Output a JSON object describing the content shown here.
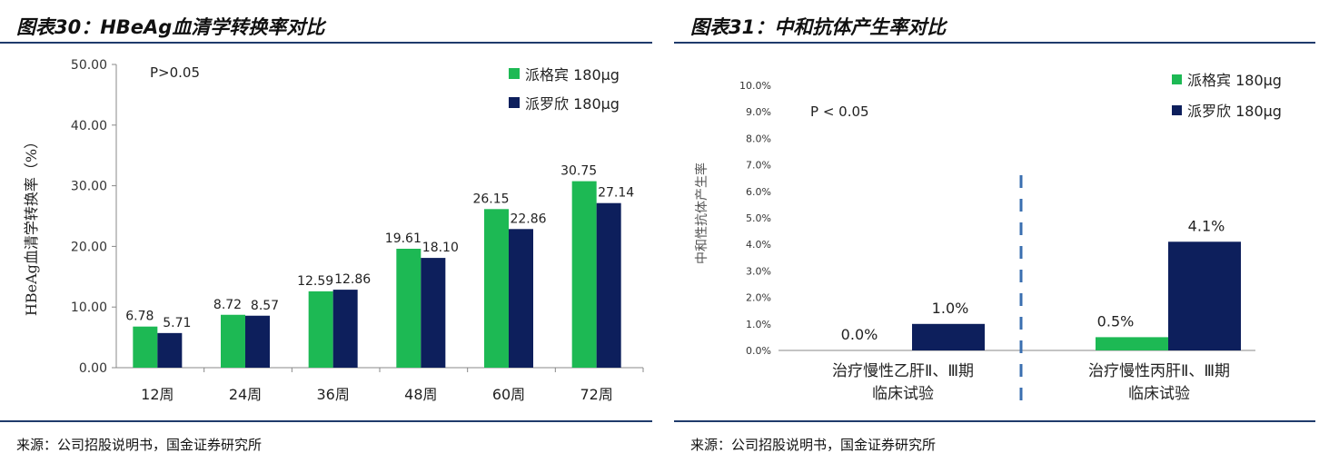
{
  "left": {
    "title": "图表30：HBeAg血清学转换率对比",
    "source": "来源：公司招股说明书，国金证券研究所"
  },
  "right": {
    "title": "图表31：中和抗体产生率对比",
    "source": "来源：公司招股说明书，国金证券研究所"
  },
  "colors": {
    "green": "#1db954",
    "navy": "#0d1f5c",
    "axis": "#888888",
    "rule": "#1f3b6b",
    "divider": "#3a6fb0"
  },
  "chart_data": [
    {
      "type": "bar",
      "title": "图表30：HBeAg血清学转换率对比",
      "annotation": "P>0.05",
      "ylabel": "HBeAg血清学转换率（%）",
      "xlabel": "",
      "ylim": [
        0,
        50
      ],
      "yticks": [
        "0.00",
        "10.00",
        "20.00",
        "30.00",
        "40.00",
        "50.00"
      ],
      "yticks_values": [
        0,
        10,
        20,
        30,
        40,
        50
      ],
      "categories": [
        "12周",
        "24周",
        "36周",
        "48周",
        "60周",
        "72周"
      ],
      "legend_position": "top-right",
      "series": [
        {
          "name": "派格宾 180μg",
          "color": "#1db954",
          "values": [
            6.78,
            8.72,
            12.59,
            19.61,
            26.15,
            30.75
          ],
          "labels": [
            "6.78",
            "8.72",
            "12.59",
            "19.61",
            "26.15",
            "30.75"
          ]
        },
        {
          "name": "派罗欣 180μg",
          "color": "#0d1f5c",
          "values": [
            5.71,
            8.57,
            12.86,
            18.1,
            22.86,
            27.14
          ],
          "labels": [
            "5.71",
            "8.57",
            "12.86",
            "18.10",
            "22.86",
            "27.14"
          ]
        }
      ]
    },
    {
      "type": "bar",
      "title": "图表31：中和抗体产生率对比",
      "annotation": "P < 0.05",
      "ylabel": "中和性抗体产生率",
      "xlabel": "",
      "ylim": [
        0,
        10
      ],
      "yticks": [
        "0.0%",
        "1.0%",
        "2.0%",
        "3.0%",
        "4.0%",
        "5.0%",
        "6.0%",
        "7.0%",
        "8.0%",
        "9.0%",
        "10.0%"
      ],
      "yticks_values": [
        0,
        1,
        2,
        3,
        4,
        5,
        6,
        7,
        8,
        9,
        10
      ],
      "categories": [
        "治疗慢性乙肝Ⅱ、Ⅲ期临床试验",
        "治疗慢性丙肝Ⅱ、Ⅲ期临床试验"
      ],
      "category_lines": [
        [
          "治疗慢性乙肝Ⅱ、Ⅲ期",
          "临床试验"
        ],
        [
          "治疗慢性丙肝Ⅱ、Ⅲ期",
          "临床试验"
        ]
      ],
      "legend_position": "top-right",
      "series": [
        {
          "name": "派格宾 180μg",
          "color": "#1db954",
          "values": [
            0.0,
            0.5
          ],
          "labels": [
            "0.0%",
            "0.5%"
          ]
        },
        {
          "name": "派罗欣 180μg",
          "color": "#0d1f5c",
          "values": [
            1.0,
            4.1
          ],
          "labels": [
            "1.0%",
            "4.1%"
          ]
        }
      ]
    }
  ]
}
